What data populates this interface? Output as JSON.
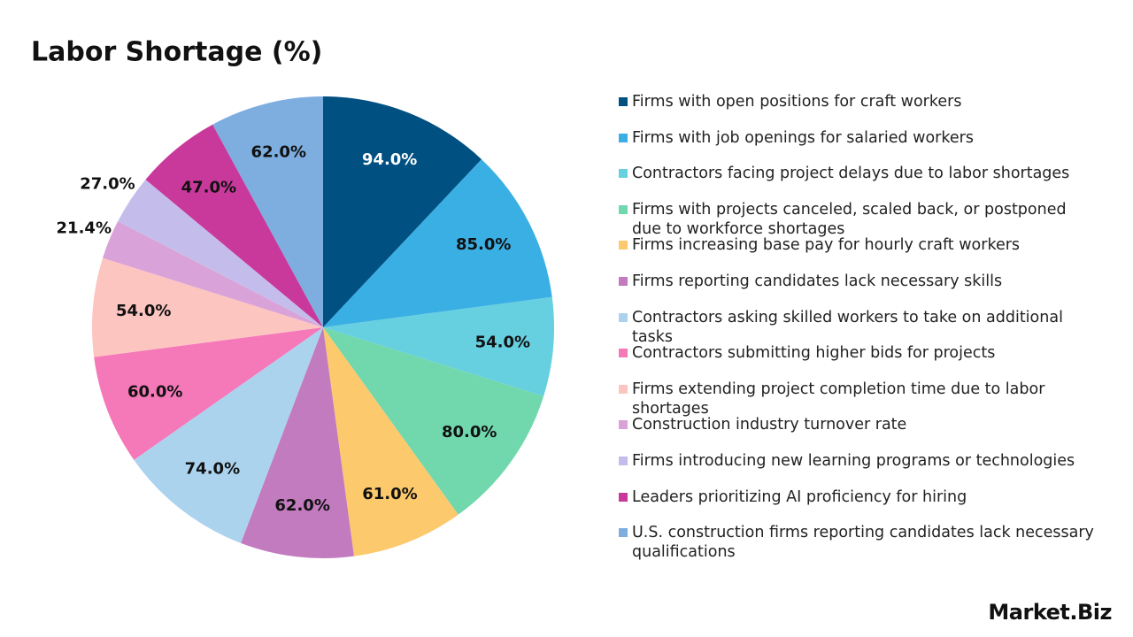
{
  "chart_data": {
    "type": "pie",
    "title": "Labor Shortage (%)",
    "categories": [
      "Firms with open positions for craft workers",
      "Firms with job openings for salaried workers",
      "Contractors facing project delays due to labor shortages",
      "Firms with projects canceled, scaled back, or postponed due to workforce shortages",
      "Firms increasing base pay for hourly craft workers",
      "Firms reporting candidates lack necessary skills",
      "Contractors asking skilled workers to take on additional tasks",
      "Contractors submitting higher bids for projects",
      "Firms extending project completion time due to labor shortages",
      "Construction industry turnover rate",
      "Firms introducing new learning programs or technologies",
      "Leaders prioritizing AI proficiency for hiring",
      "U.S. construction firms reporting candidates lack necessary qualifications"
    ],
    "values": [
      94,
      85,
      54,
      80,
      61,
      62,
      74,
      60,
      54,
      21.4,
      27,
      47,
      62
    ],
    "value_labels": [
      "94.0%",
      "85.0%",
      "54.0%",
      "80.0%",
      "61.0%",
      "62.0%",
      "74.0%",
      "60.0%",
      "54.0%",
      "21.4%",
      "27.0%",
      "47.0%",
      "62.0%"
    ],
    "colors": [
      "#005082",
      "#3aafe4",
      "#66cfe0",
      "#71d8ae",
      "#fcc96c",
      "#c27bbf",
      "#acd3ee",
      "#f578b8",
      "#fcc5c0",
      "#d9a2d9",
      "#c4bdec",
      "#c8399b",
      "#7daedf"
    ],
    "legend": "right"
  },
  "brand": "Market.Biz"
}
